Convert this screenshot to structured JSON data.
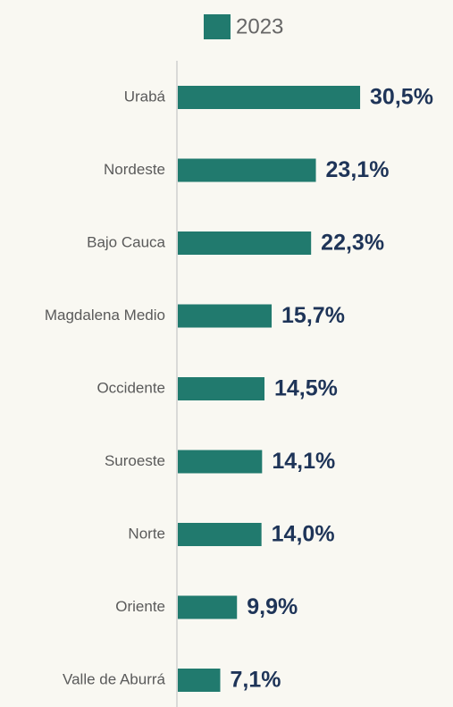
{
  "chart_data": {
    "type": "bar",
    "orientation": "horizontal",
    "categories": [
      "Urabá",
      "Nordeste",
      "Bajo Cauca",
      "Magdalena Medio",
      "Occidente",
      "Suroeste",
      "Norte",
      "Oriente",
      "Valle de Aburrá"
    ],
    "series": [
      {
        "name": "2023",
        "color": "#217a6e",
        "values": [
          30.5,
          23.1,
          22.3,
          15.7,
          14.5,
          14.1,
          14.0,
          9.9,
          7.1
        ],
        "value_labels": [
          "30,5%",
          "23,1%",
          "22,3%",
          "15,7%",
          "14,5%",
          "14,1%",
          "14,0%",
          "9,9%",
          "7,1%"
        ]
      }
    ],
    "legend": "top"
  }
}
